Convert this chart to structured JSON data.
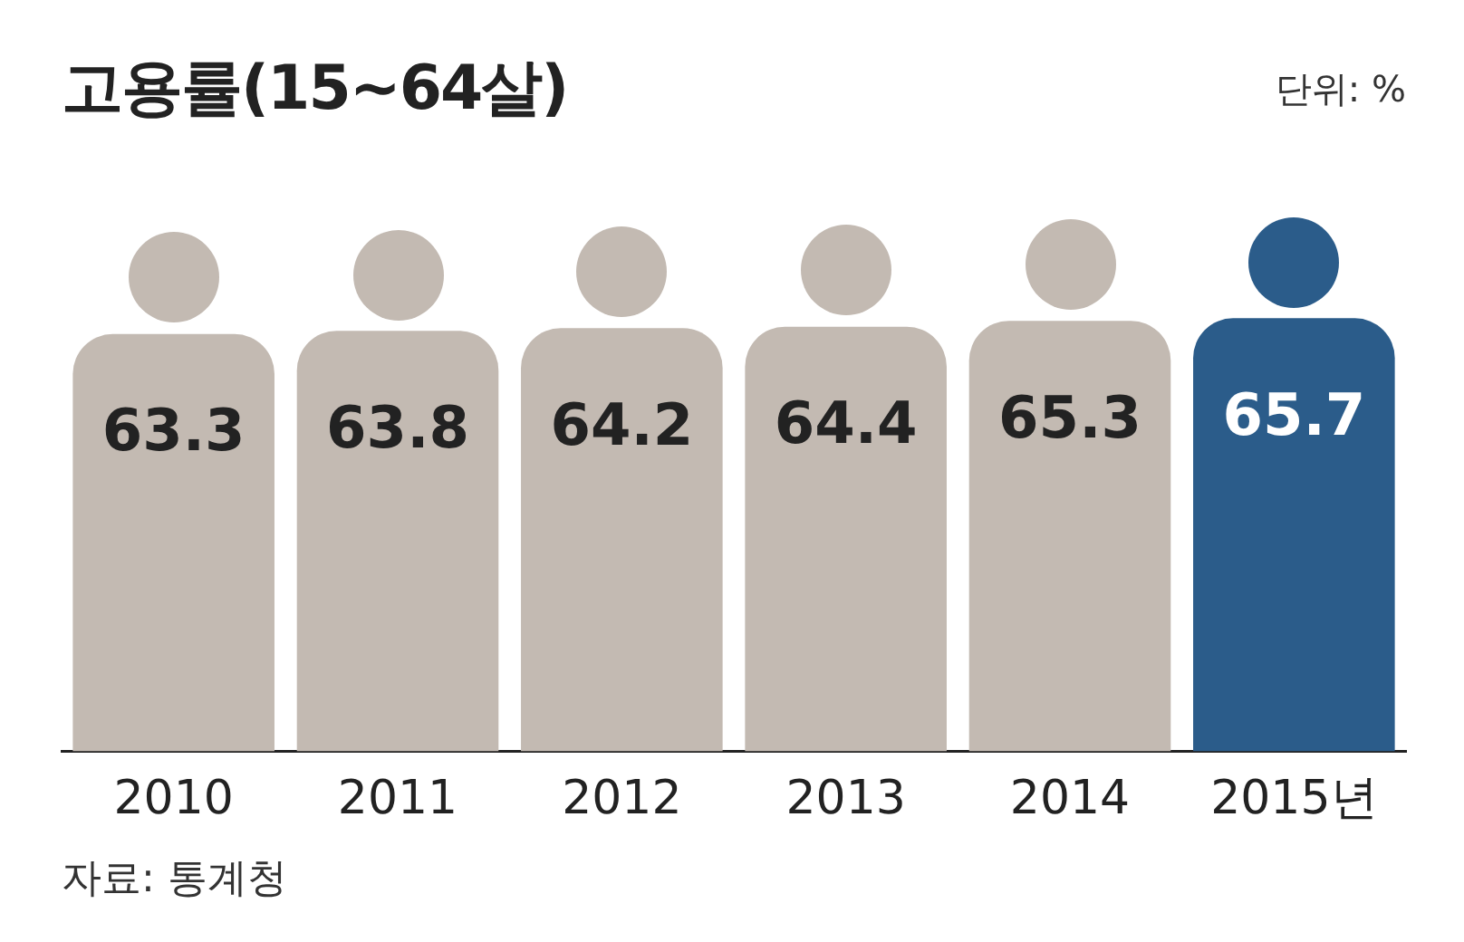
{
  "chart_data": {
    "type": "bar",
    "title": "고용률(15~64살)",
    "annotations": [
      "단위: %",
      "자료: 통계청"
    ],
    "categories": [
      "2010",
      "2011",
      "2012",
      "2013",
      "2014",
      "2015년"
    ],
    "values": [
      63.3,
      63.8,
      64.2,
      64.4,
      65.3,
      65.7
    ],
    "colors": [
      "#c3bab2",
      "#c3bab2",
      "#c3bab2",
      "#c3bab2",
      "#c3bab2",
      "#2b5c8a"
    ],
    "data_labels": true,
    "grid": false,
    "legend": false,
    "tick_labels": "x"
  }
}
